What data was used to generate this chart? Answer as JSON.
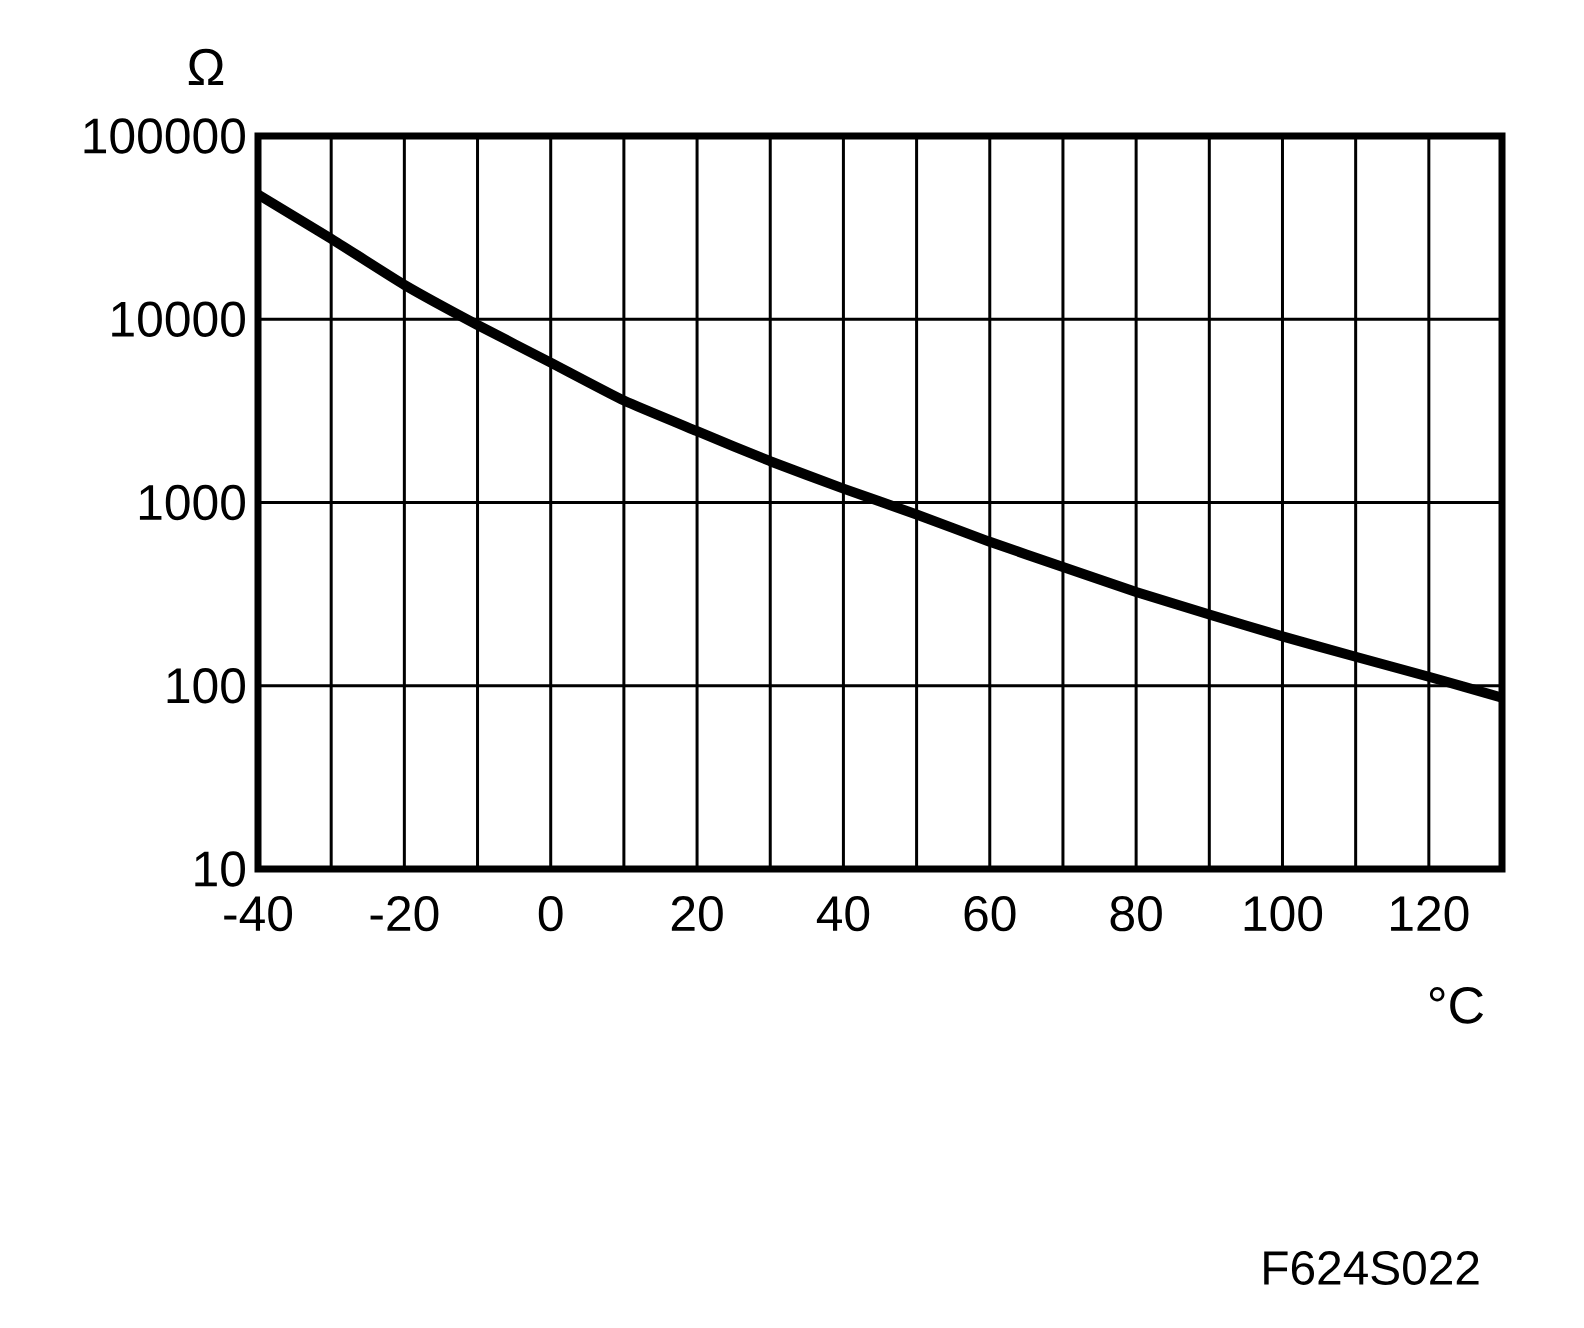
{
  "chart_data": {
    "type": "line",
    "xlabel": "°C",
    "ylabel": "Ω",
    "annotations": [
      "F624S022"
    ],
    "x": [
      -40,
      -30,
      -20,
      -10,
      0,
      10,
      20,
      30,
      40,
      50,
      60,
      70,
      80,
      90,
      100,
      110,
      120,
      130
    ],
    "series": [
      {
        "color": "#000000",
        "values": [
          48000,
          27500,
          15400,
          9300,
          5800,
          3600,
          2450,
          1680,
          1190,
          860,
          610,
          445,
          325,
          245,
          186,
          144,
          112,
          86
        ]
      }
    ],
    "xlim": [
      -40,
      130
    ],
    "ylim": [
      10,
      100000
    ],
    "log": "y",
    "grid": true,
    "xticks": [
      -40,
      {
        "value": -30,
        "label": null
      },
      -20,
      {
        "value": -10,
        "label": null
      },
      0,
      {
        "value": 10,
        "label": null
      },
      20,
      {
        "value": 30,
        "label": null
      },
      40,
      {
        "value": 50,
        "label": null
      },
      60,
      {
        "value": 70,
        "label": null
      },
      80,
      {
        "value": 90,
        "label": null
      },
      100,
      {
        "value": 110,
        "label": null
      },
      120,
      {
        "value": 130,
        "label": null
      }
    ],
    "yticks": [
      10,
      100,
      1000,
      10000,
      100000
    ]
  }
}
